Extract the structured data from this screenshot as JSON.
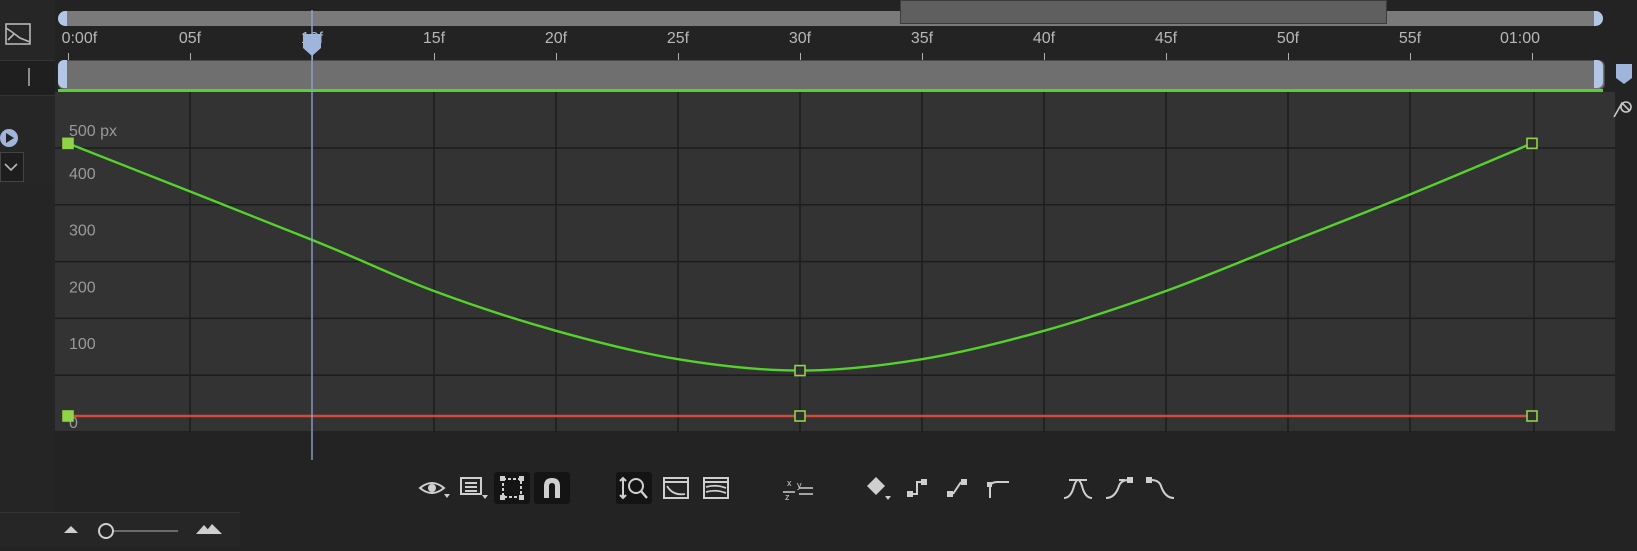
{
  "colors": {
    "accent_blue": "#b4c6e6",
    "value_curve": "#55d22c",
    "flat_curve": "#d24a3c",
    "keyframe": "#8fd448",
    "grid": "#1d1d1d",
    "graph_bg": "#333333"
  },
  "ruler": {
    "labels": [
      "0:00f",
      "05f",
      "10f",
      "15f",
      "20f",
      "25f",
      "30f",
      "35f",
      "40f",
      "45f",
      "50f",
      "55f",
      "01:00"
    ]
  },
  "graph": {
    "unit_label": "500 px",
    "value_labels": [
      "400",
      "300",
      "200",
      "100",
      "0"
    ],
    "playhead_frame": 10,
    "duration_frames": 60
  },
  "chart_data": {
    "type": "line",
    "xlabel": "",
    "ylabel": "",
    "x_unit": "frames",
    "y_unit": "px",
    "xlim": [
      0,
      60
    ],
    "ylim": [
      0,
      500
    ],
    "series": [
      {
        "x": [
          0,
          10,
          15,
          20,
          25,
          30,
          35,
          40,
          45,
          50,
          55,
          60
        ],
        "y": [
          480,
          310,
          220,
          150,
          100,
          80,
          100,
          150,
          220,
          305,
          390,
          480
        ],
        "color": "#55d22c"
      },
      {
        "x": [
          0,
          30,
          60
        ],
        "y": [
          0,
          0,
          0
        ],
        "color": "#d24a3c"
      }
    ],
    "keyframes": [
      {
        "frame": 0,
        "value": 480
      },
      {
        "frame": 30,
        "value": 80
      },
      {
        "frame": 60,
        "value": 480
      },
      {
        "frame": 0,
        "value": 0
      },
      {
        "frame": 30,
        "value": 0
      },
      {
        "frame": 60,
        "value": 0
      }
    ]
  },
  "toolbar": {
    "icons": [
      "eye-icon",
      "list-icon",
      "fit-selection-icon",
      "snap-magnet-icon",
      "zoom-fit-icon",
      "fit-all-graph-icon",
      "fit-graph-icon",
      "separate-dimensions-icon",
      "keyframe-diamond-icon",
      "hold-keyframe-icon",
      "linear-keyframe-icon",
      "auto-bezier-icon",
      "easy-ease-icon",
      "easy-ease-in-icon",
      "easy-ease-out-icon"
    ]
  }
}
